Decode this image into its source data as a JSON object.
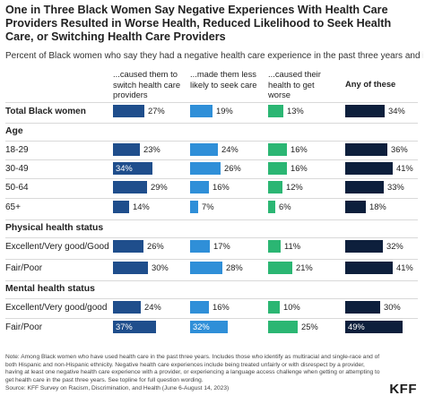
{
  "title": "One in Three Black Women Say Negative Experiences With Health Care Providers Resulted in Worse Health, Reduced Likelihood to Seek Health Care, or Switching Health Care Providers",
  "subtitle": "Percent of Black women who say they had a negative health care experience in the past three years and it...",
  "notes": "Note: Among Black women who have used health care in the past three years. Includes those who identify as multiracial and single-race and of both Hispanic and non-Hispanic ethnicity. Negative health care experiences include being treated unfairly or with disrespect by a provider, having at least one negative health care experience with a provider, or experiencing a language access challenge when getting or attempting to get health care in the past three years. See topline for full question wording.",
  "source": "Source: KFF Survey on Racism, Discrimination, and Health (June 6-August 14, 2023)",
  "logo": "KFF",
  "colors": {
    "worse_health": "#1f4e8c",
    "less_likely": "#2f8fd8",
    "switch": "#2bb673",
    "any": "#0d1f3c"
  },
  "chart_data": {
    "type": "table",
    "title": "One in Three Black Women Say Negative Experiences With Health Care Providers Resulted in Worse Health, Reduced Likelihood to Seek Health Care, or Switching Health Care Providers",
    "subtitle": "Percent of Black women who say they had a negative health care experience in the past three years and it...",
    "columns": [
      {
        "key": "worse_health",
        "label": "...caused them to switch health care providers"
      },
      {
        "key": "less_likely",
        "label": "...made them less likely to seek care"
      },
      {
        "key": "switch",
        "label": "...caused their health to get worse"
      },
      {
        "key": "any",
        "label": "Any of these"
      }
    ],
    "rows": [
      {
        "kind": "row",
        "label": "Total Black women",
        "bold": true,
        "values": [
          27,
          19,
          13,
          34
        ]
      },
      {
        "kind": "section",
        "label": "Age"
      },
      {
        "kind": "row",
        "label": "18-29",
        "values": [
          23,
          24,
          16,
          36
        ]
      },
      {
        "kind": "row",
        "label": "30-49",
        "values": [
          34,
          26,
          16,
          41
        ]
      },
      {
        "kind": "row",
        "label": "50-64",
        "values": [
          29,
          16,
          12,
          33
        ]
      },
      {
        "kind": "row",
        "label": "65+",
        "values": [
          14,
          7,
          6,
          18
        ]
      },
      {
        "kind": "section",
        "label": "Physical health status"
      },
      {
        "kind": "row",
        "label": "Excellent/Very good/Good",
        "values": [
          26,
          17,
          11,
          32
        ]
      },
      {
        "kind": "row",
        "label": "Fair/Poor",
        "values": [
          30,
          28,
          21,
          41
        ]
      },
      {
        "kind": "section",
        "label": "Mental health status"
      },
      {
        "kind": "row",
        "label": "Excellent/Very good/good",
        "values": [
          24,
          16,
          10,
          30
        ]
      },
      {
        "kind": "row",
        "label": "Fair/Poor",
        "values": [
          37,
          32,
          25,
          49
        ]
      }
    ]
  }
}
